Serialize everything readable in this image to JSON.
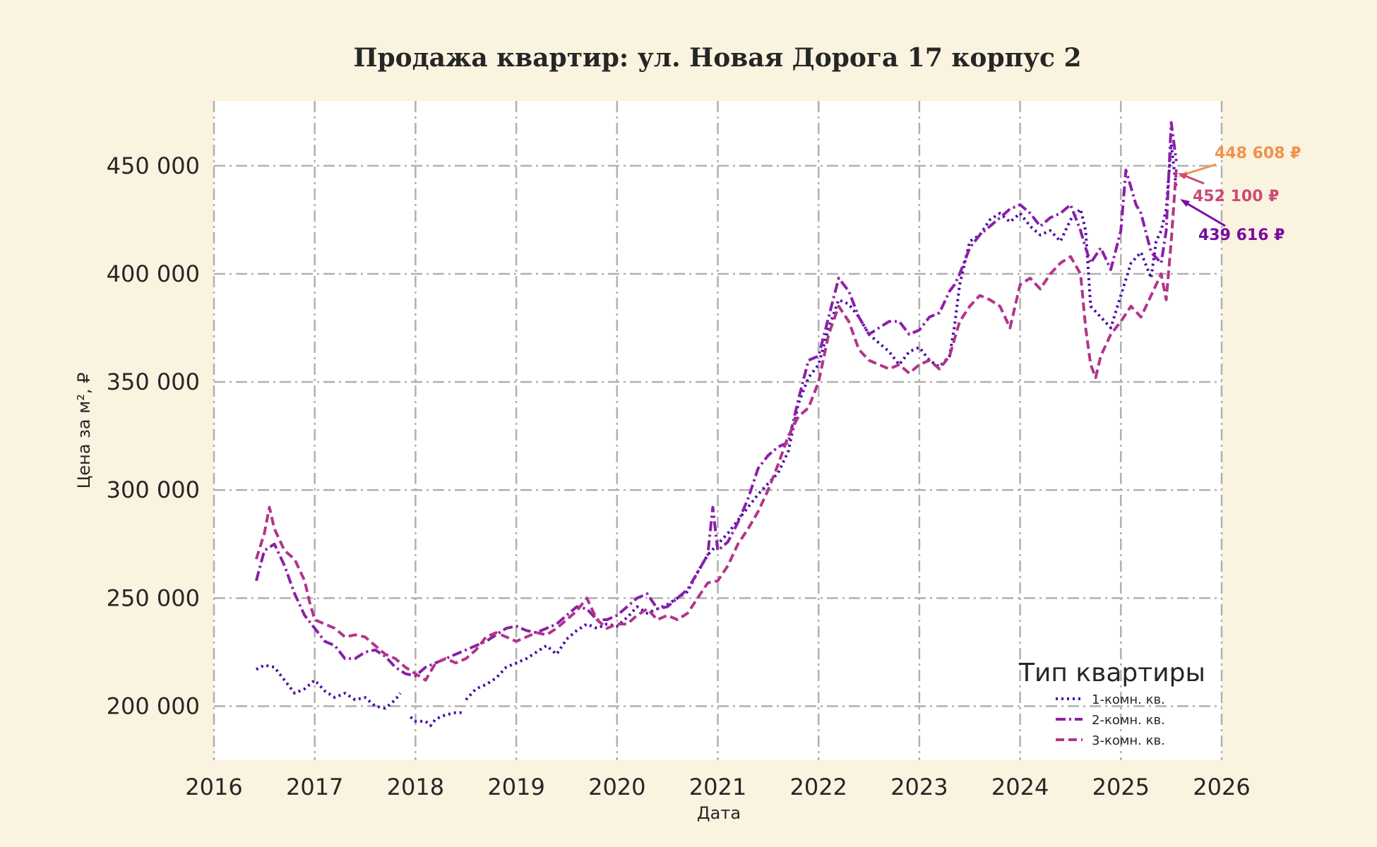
{
  "chart_data": {
    "type": "line",
    "title": "Продажа квартир: ул. Новая Дорога 17 корпус 2",
    "xlabel": "Дата",
    "ylabel": "Цена за м², ₽",
    "xlim": [
      2016.0,
      2026.0
    ],
    "ylim": [
      175000,
      480000
    ],
    "x_ticks": [
      2016,
      2017,
      2018,
      2019,
      2020,
      2021,
      2022,
      2023,
      2024,
      2025,
      2026
    ],
    "x_tick_labels": [
      "2016",
      "2017",
      "2018",
      "2019",
      "2020",
      "2021",
      "2022",
      "2023",
      "2024",
      "2025",
      "2026"
    ],
    "y_ticks": [
      200000,
      250000,
      300000,
      350000,
      400000,
      450000
    ],
    "y_tick_labels": [
      "200 000",
      "250 000",
      "300 000",
      "350 000",
      "400 000",
      "450 000"
    ],
    "grid": true,
    "legend": {
      "title": "Тип квартиры",
      "placement": "bottom-right"
    },
    "series": [
      {
        "name": "1-комн. кв.",
        "color": "#4a0ca6",
        "style": "dotted",
        "x": [
          2016.42,
          2016.5,
          2016.6,
          2016.7,
          2016.8,
          2016.9,
          2017.0,
          2017.1,
          2017.2,
          2017.3,
          2017.4,
          2017.5,
          2017.6,
          2017.7,
          2017.8,
          2017.85,
          null,
          2017.95,
          2018.0,
          2018.1,
          2018.15,
          2018.2,
          2018.3,
          2018.4,
          2018.48,
          null,
          2018.5,
          2018.6,
          2018.7,
          2018.8,
          2018.9,
          2019.0,
          2019.1,
          2019.2,
          2019.3,
          2019.4,
          2019.5,
          2019.6,
          2019.7,
          2019.8,
          2019.9,
          2020.0,
          2020.1,
          2020.2,
          2020.3,
          2020.4,
          2020.5,
          2020.6,
          2020.7,
          2020.8,
          2020.9,
          2021.0,
          2021.1,
          2021.2,
          2021.3,
          2021.4,
          2021.5,
          2021.6,
          2021.7,
          2021.8,
          2021.9,
          2022.0,
          2022.1,
          2022.2,
          2022.3,
          2022.4,
          2022.5,
          2022.6,
          2022.7,
          2022.8,
          2022.9,
          2023.0,
          2023.1,
          2023.2,
          2023.3,
          2023.35,
          2023.4,
          2023.5,
          2023.6,
          2023.7,
          2023.8,
          2023.9,
          2024.0,
          2024.1,
          2024.2,
          2024.3,
          2024.4,
          2024.5,
          2024.6,
          2024.65,
          2024.7,
          2024.8,
          2024.9,
          2025.0,
          2025.1,
          2025.2,
          2025.3,
          2025.35,
          2025.4,
          2025.45,
          2025.5,
          2025.55
        ],
        "y": [
          217000,
          219000,
          218000,
          212000,
          206000,
          208000,
          212000,
          207000,
          204000,
          206000,
          203000,
          204000,
          200000,
          199000,
          203000,
          206000,
          null,
          195000,
          193000,
          193000,
          191000,
          194000,
          196000,
          197000,
          197000,
          null,
          203000,
          208000,
          210000,
          213000,
          218000,
          220000,
          222000,
          225000,
          228000,
          224000,
          231000,
          235000,
          238000,
          236000,
          238000,
          237000,
          241000,
          246000,
          243000,
          245000,
          247000,
          250000,
          253000,
          262000,
          270000,
          275000,
          280000,
          286000,
          292000,
          298000,
          303000,
          308000,
          318000,
          340000,
          352000,
          358000,
          375000,
          388000,
          386000,
          380000,
          372000,
          368000,
          364000,
          358000,
          364000,
          366000,
          360000,
          357000,
          362000,
          376000,
          395000,
          415000,
          418000,
          425000,
          428000,
          424000,
          428000,
          422000,
          418000,
          420000,
          415000,
          425000,
          430000,
          420000,
          385000,
          380000,
          375000,
          390000,
          405000,
          410000,
          398000,
          415000,
          420000,
          430000,
          460000,
          439616
        ]
      },
      {
        "name": "2-комн. кв.",
        "color": "#8b1fa9",
        "style": "dashdot",
        "x": [
          2016.42,
          2016.5,
          2016.6,
          2016.7,
          2016.8,
          2016.9,
          2017.0,
          2017.1,
          2017.2,
          2017.3,
          2017.4,
          2017.5,
          2017.6,
          2017.7,
          2017.8,
          2017.9,
          2018.0,
          2018.1,
          2018.2,
          2018.3,
          2018.4,
          2018.5,
          2018.6,
          2018.7,
          2018.8,
          2018.9,
          2019.0,
          2019.1,
          2019.2,
          2019.3,
          2019.4,
          2019.5,
          2019.6,
          2019.7,
          2019.8,
          2019.9,
          2020.0,
          2020.1,
          2020.2,
          2020.3,
          2020.4,
          2020.5,
          2020.6,
          2020.7,
          2020.8,
          2020.9,
          2020.95,
          2021.0,
          2021.1,
          2021.2,
          2021.3,
          2021.4,
          2021.5,
          2021.6,
          2021.7,
          2021.8,
          2021.9,
          2022.0,
          2022.1,
          2022.2,
          2022.3,
          2022.4,
          2022.5,
          2022.6,
          2022.7,
          2022.8,
          2022.9,
          2023.0,
          2023.1,
          2023.2,
          2023.3,
          2023.35,
          2023.4,
          2023.5,
          2023.6,
          2023.7,
          2023.8,
          2023.9,
          2024.0,
          2024.1,
          2024.2,
          2024.3,
          2024.4,
          2024.5,
          2024.6,
          2024.65,
          2024.7,
          2024.8,
          2024.9,
          2025.0,
          2025.05,
          2025.1,
          2025.15,
          2025.2,
          2025.3,
          2025.4,
          2025.45,
          2025.5,
          2025.55
        ],
        "y": [
          258000,
          272000,
          275000,
          265000,
          252000,
          242000,
          236000,
          230000,
          228000,
          222000,
          222000,
          225000,
          226000,
          223000,
          218000,
          215000,
          214000,
          218000,
          220000,
          222000,
          224000,
          226000,
          228000,
          230000,
          233000,
          236000,
          237000,
          235000,
          234000,
          236000,
          238000,
          242000,
          246000,
          245000,
          240000,
          240000,
          242000,
          246000,
          250000,
          252000,
          245000,
          246000,
          250000,
          254000,
          262000,
          270000,
          292000,
          272000,
          276000,
          285000,
          296000,
          310000,
          316000,
          320000,
          322000,
          342000,
          360000,
          362000,
          380000,
          398000,
          392000,
          380000,
          372000,
          375000,
          378000,
          378000,
          372000,
          374000,
          380000,
          382000,
          392000,
          395000,
          400000,
          412000,
          418000,
          422000,
          426000,
          430000,
          432000,
          428000,
          422000,
          426000,
          428000,
          432000,
          420000,
          412000,
          405000,
          412000,
          402000,
          420000,
          448000,
          440000,
          432000,
          428000,
          410000,
          405000,
          420000,
          470000,
          452100
        ]
      },
      {
        "name": "3-комн. кв.",
        "color": "#b2348c",
        "style": "dashed",
        "x": [
          2016.42,
          2016.5,
          2016.55,
          2016.6,
          2016.7,
          2016.8,
          2016.9,
          2016.95,
          2017.0,
          2017.1,
          2017.2,
          2017.3,
          2017.4,
          2017.5,
          2017.6,
          2017.7,
          2017.8,
          2017.9,
          2018.0,
          2018.1,
          2018.2,
          2018.3,
          2018.4,
          2018.5,
          2018.6,
          2018.7,
          2018.8,
          2018.9,
          2019.0,
          2019.1,
          2019.2,
          2019.3,
          2019.4,
          2019.5,
          2019.6,
          2019.7,
          2019.8,
          2019.9,
          2020.0,
          2020.1,
          2020.2,
          2020.3,
          2020.4,
          2020.5,
          2020.6,
          2020.7,
          2020.8,
          2020.9,
          2021.0,
          2021.1,
          2021.2,
          2021.3,
          2021.4,
          2021.5,
          2021.6,
          2021.7,
          2021.8,
          2021.9,
          2022.0,
          2022.1,
          2022.2,
          2022.3,
          2022.4,
          2022.5,
          2022.6,
          2022.7,
          2022.8,
          2022.9,
          2023.0,
          2023.1,
          2023.2,
          2023.3,
          2023.4,
          2023.5,
          2023.6,
          2023.7,
          2023.8,
          2023.9,
          2024.0,
          2024.1,
          2024.2,
          2024.3,
          2024.4,
          2024.5,
          2024.6,
          2024.65,
          2024.7,
          2024.75,
          2024.8,
          2024.9,
          2025.0,
          2025.1,
          2025.2,
          2025.3,
          2025.4,
          2025.45,
          2025.5,
          2025.55
        ],
        "y": [
          268000,
          280000,
          292000,
          282000,
          272000,
          268000,
          258000,
          248000,
          240000,
          238000,
          236000,
          232000,
          233000,
          232000,
          228000,
          224000,
          222000,
          218000,
          215000,
          212000,
          220000,
          222000,
          220000,
          222000,
          226000,
          232000,
          234000,
          232000,
          230000,
          232000,
          234000,
          233000,
          236000,
          240000,
          244000,
          250000,
          240000,
          236000,
          238000,
          238000,
          242000,
          245000,
          240000,
          242000,
          240000,
          243000,
          250000,
          257000,
          258000,
          265000,
          275000,
          282000,
          290000,
          300000,
          312000,
          325000,
          334000,
          338000,
          350000,
          372000,
          385000,
          378000,
          365000,
          360000,
          358000,
          356000,
          358000,
          354000,
          358000,
          360000,
          356000,
          362000,
          378000,
          385000,
          390000,
          388000,
          385000,
          375000,
          395000,
          398000,
          393000,
          400000,
          405000,
          408000,
          400000,
          375000,
          358000,
          352000,
          362000,
          372000,
          378000,
          385000,
          380000,
          390000,
          400000,
          388000,
          415000,
          448608
        ]
      }
    ],
    "annotations": [
      {
        "text": "448 608 ₽",
        "color": "#f0924a"
      },
      {
        "text": "452 100 ₽",
        "color": "#cc4a76"
      },
      {
        "text": "439 616 ₽",
        "color": "#7b0ba0"
      }
    ]
  }
}
